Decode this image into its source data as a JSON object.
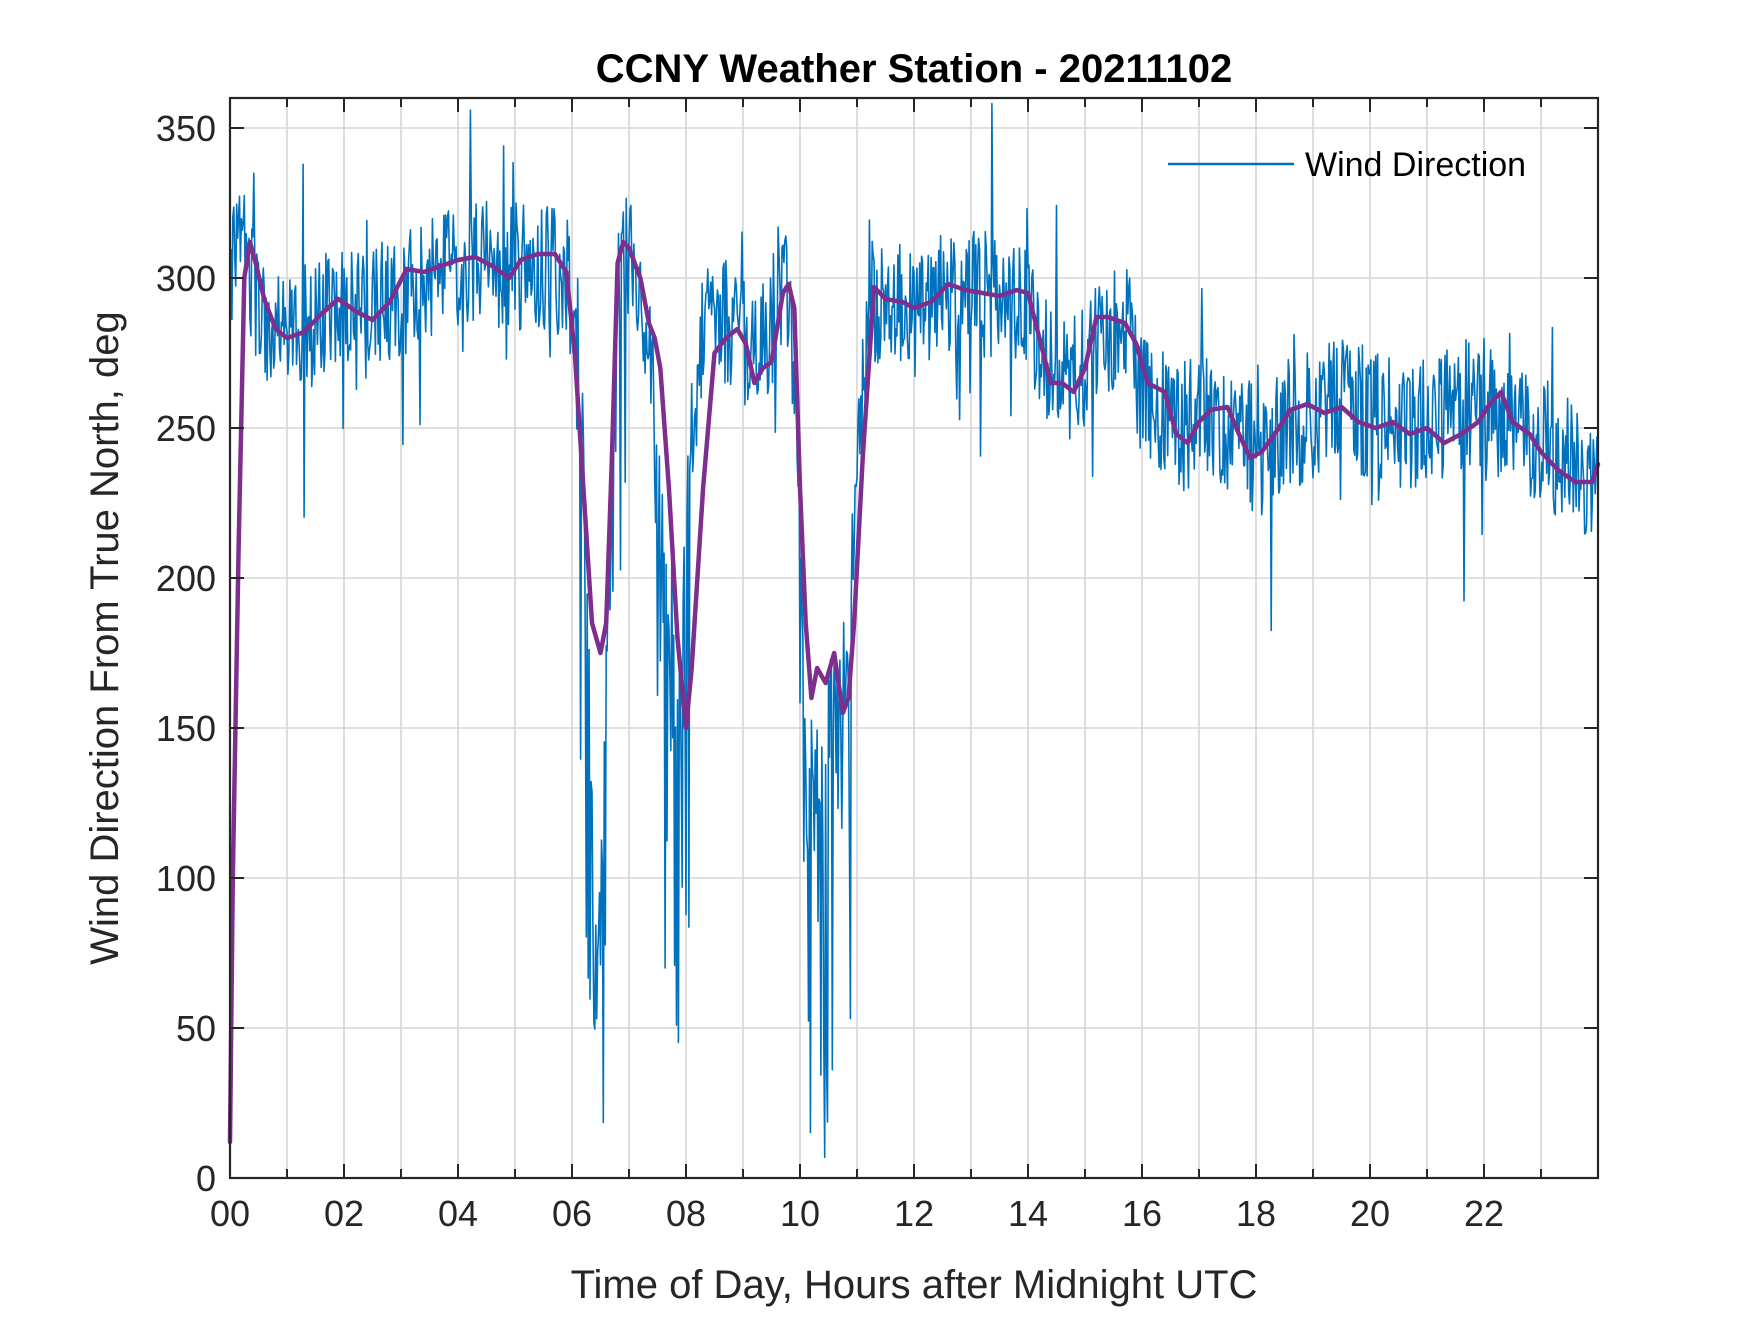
{
  "chart_data": {
    "type": "line",
    "title": "CCNY Weather Station - 20211102",
    "xlabel": "Time of Day, Hours after Midnight UTC",
    "ylabel": "Wind Direction From True North, deg",
    "xlim": [
      0,
      24
    ],
    "ylim": [
      0,
      360
    ],
    "x_ticks": [
      0,
      2,
      4,
      6,
      8,
      10,
      12,
      14,
      16,
      18,
      20,
      22
    ],
    "x_tick_labels": [
      "00",
      "02",
      "04",
      "06",
      "08",
      "10",
      "12",
      "14",
      "16",
      "18",
      "20",
      "22"
    ],
    "y_ticks": [
      0,
      50,
      100,
      150,
      200,
      250,
      300,
      350
    ],
    "y_tick_labels": [
      "0",
      "50",
      "100",
      "150",
      "200",
      "250",
      "300",
      "350"
    ],
    "grid": true,
    "legend_position": "top-right",
    "series": [
      {
        "name": "Wind Direction",
        "color": "#0072BD",
        "style": "noisy",
        "x": [
          0,
          0.05,
          0.1,
          0.2,
          0.35,
          0.5,
          0.7,
          1.0,
          1.5,
          2.0,
          2.5,
          3.0,
          3.5,
          4.0,
          4.5,
          5.0,
          5.5,
          5.9,
          6.1,
          6.2,
          6.3,
          6.4,
          6.5,
          6.6,
          6.7,
          6.8,
          6.9,
          7.0,
          7.2,
          7.4,
          7.6,
          7.8,
          7.95,
          8.1,
          8.3,
          8.5,
          8.7,
          9.0,
          9.2,
          9.5,
          9.8,
          9.95,
          10.1,
          10.3,
          10.5,
          10.7,
          10.85,
          11.0,
          11.2,
          11.5,
          12.0,
          12.5,
          13.0,
          13.5,
          13.9,
          14.2,
          14.5,
          14.8,
          15.0,
          15.2,
          15.5,
          15.8,
          16.0,
          16.3,
          16.7,
          17.0,
          17.3,
          17.7,
          18.0,
          18.3,
          18.7,
          19.0,
          19.5,
          20.0,
          20.5,
          21.0,
          21.5,
          22.0,
          22.3,
          22.7,
          23.0,
          23.3,
          23.7,
          24.0
        ],
        "values": [
          300,
          305,
          315,
          312,
          300,
          285,
          280,
          280,
          285,
          290,
          288,
          295,
          300,
          303,
          305,
          303,
          305,
          300,
          290,
          250,
          160,
          60,
          80,
          170,
          230,
          300,
          310,
          305,
          290,
          270,
          200,
          160,
          200,
          250,
          280,
          290,
          285,
          280,
          270,
          285,
          295,
          260,
          150,
          140,
          150,
          160,
          180,
          230,
          290,
          292,
          288,
          295,
          297,
          293,
          290,
          275,
          270,
          265,
          268,
          280,
          285,
          280,
          260,
          255,
          250,
          255,
          252,
          248,
          242,
          245,
          250,
          255,
          258,
          255,
          250,
          252,
          255,
          258,
          255,
          250,
          245,
          242,
          235,
          238
        ],
        "noise_amplitude": 22,
        "samples": 1440
      },
      {
        "color": "#7E2F8E",
        "style": "smooth",
        "x": [
          0,
          0.05,
          0.15,
          0.25,
          0.35,
          0.45,
          0.6,
          0.8,
          1.0,
          1.3,
          1.6,
          1.9,
          2.2,
          2.5,
          2.8,
          3.1,
          3.4,
          3.7,
          4.0,
          4.3,
          4.6,
          4.9,
          5.1,
          5.4,
          5.7,
          5.9,
          6.05,
          6.2,
          6.35,
          6.5,
          6.6,
          6.7,
          6.8,
          6.9,
          7.0,
          7.2,
          7.35,
          7.45,
          7.55,
          7.7,
          7.85,
          8.0,
          8.1,
          8.3,
          8.5,
          8.7,
          8.9,
          9.05,
          9.2,
          9.35,
          9.5,
          9.7,
          9.8,
          9.9,
          10.0,
          10.1,
          10.2,
          10.3,
          10.45,
          10.6,
          10.75,
          10.85,
          10.95,
          11.1,
          11.3,
          11.5,
          11.8,
          12.0,
          12.3,
          12.6,
          12.9,
          13.2,
          13.5,
          13.8,
          14.0,
          14.2,
          14.4,
          14.6,
          14.8,
          15.0,
          15.2,
          15.4,
          15.7,
          15.9,
          16.1,
          16.4,
          16.6,
          16.8,
          17.0,
          17.2,
          17.5,
          17.7,
          17.9,
          18.1,
          18.4,
          18.6,
          18.9,
          19.2,
          19.5,
          19.8,
          20.1,
          20.4,
          20.7,
          21.0,
          21.3,
          21.6,
          21.9,
          22.1,
          22.3,
          22.5,
          22.8,
          23.0,
          23.3,
          23.6,
          23.9,
          24.0
        ],
        "values": [
          12,
          100,
          210,
          300,
          312,
          305,
          293,
          283,
          280,
          282,
          288,
          293,
          289,
          286,
          292,
          303,
          302,
          304,
          306,
          307,
          304,
          300,
          306,
          308,
          308,
          302,
          275,
          230,
          185,
          175,
          185,
          240,
          305,
          312,
          310,
          300,
          285,
          280,
          270,
          230,
          180,
          150,
          170,
          230,
          275,
          280,
          283,
          278,
          265,
          270,
          272,
          295,
          298,
          290,
          230,
          185,
          160,
          170,
          165,
          175,
          155,
          160,
          185,
          240,
          297,
          293,
          292,
          290,
          292,
          298,
          296,
          295,
          294,
          296,
          295,
          280,
          265,
          265,
          262,
          270,
          287,
          287,
          285,
          278,
          265,
          262,
          248,
          245,
          252,
          256,
          257,
          248,
          240,
          242,
          250,
          256,
          258,
          255,
          257,
          252,
          250,
          252,
          248,
          250,
          245,
          248,
          252,
          258,
          262,
          252,
          248,
          242,
          236,
          232,
          232,
          238
        ]
      }
    ]
  }
}
